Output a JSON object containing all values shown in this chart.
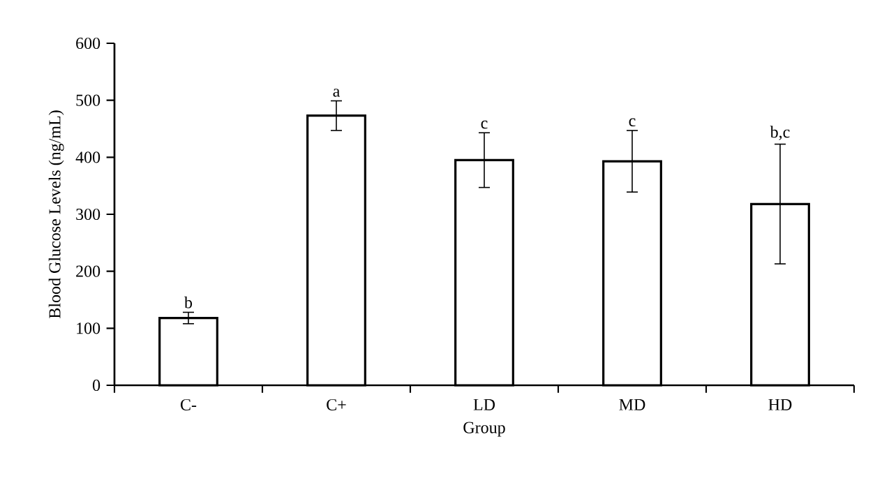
{
  "chart_data": {
    "type": "bar",
    "xlabel": "Group",
    "ylabel": "Blood Glucose Levels (ng/mL)",
    "categories": [
      "C-",
      "C+",
      "LD",
      "MD",
      "HD"
    ],
    "values": [
      118,
      473,
      395,
      393,
      318
    ],
    "errors": [
      10,
      26,
      48,
      54,
      105
    ],
    "color": "#000000",
    "ylim": [
      0,
      600
    ],
    "yticks": [
      0,
      100,
      200,
      300,
      400,
      500,
      600
    ],
    "annotations": [
      {
        "text": "b",
        "x": "C-",
        "y": 128
      },
      {
        "text": "a",
        "x": "C+",
        "y": 499
      },
      {
        "text": "c",
        "x": "LD",
        "y": 443
      },
      {
        "text": "c",
        "x": "MD",
        "y": 447
      },
      {
        "text": "b,c",
        "x": "HD",
        "y": 423
      }
    ]
  }
}
